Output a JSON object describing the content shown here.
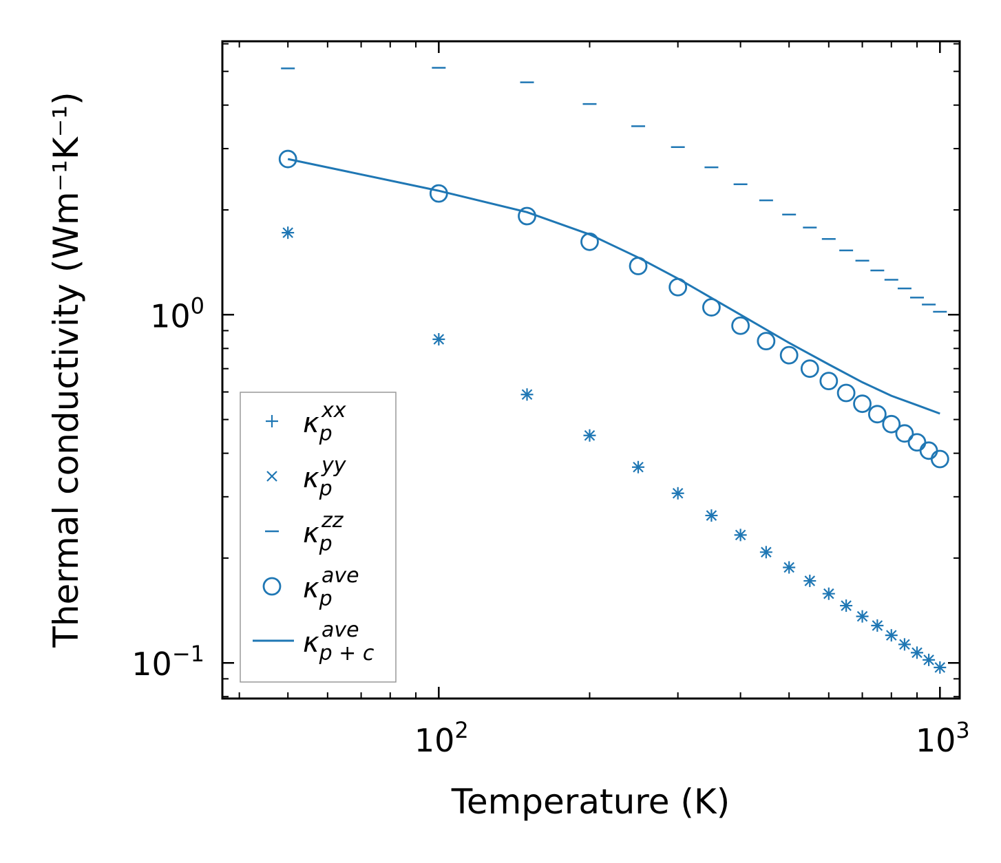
{
  "chart_data": {
    "type": "scatter",
    "xscale": "log",
    "yscale": "log",
    "xlabel": "Temperature (K)",
    "ylabel": "Thermal conductivity (Wm⁻¹K⁻¹)",
    "xlim": [
      37,
      1095
    ],
    "ylim": [
      0.079,
      6.1
    ],
    "x_ticks": [
      {
        "value": 100,
        "base": "10",
        "exp": "2"
      },
      {
        "value": 1000,
        "base": "10",
        "exp": "3"
      }
    ],
    "y_ticks": [
      {
        "value": 0.1,
        "base": "10",
        "exp": "−1"
      },
      {
        "value": 1,
        "base": "10",
        "exp": "0"
      }
    ],
    "x": [
      50,
      100,
      150,
      200,
      250,
      300,
      350,
      400,
      450,
      500,
      550,
      600,
      650,
      700,
      750,
      800,
      850,
      900,
      950,
      1000
    ],
    "series": [
      {
        "name": "kappa_p_xx",
        "marker": "plus",
        "values": [
          1.72,
          0.85,
          0.59,
          0.45,
          0.365,
          0.307,
          0.265,
          0.233,
          0.208,
          0.188,
          0.172,
          0.158,
          0.146,
          0.136,
          0.128,
          0.12,
          0.113,
          0.107,
          0.102,
          0.097
        ]
      },
      {
        "name": "kappa_p_yy",
        "marker": "x",
        "values": [
          1.72,
          0.85,
          0.59,
          0.45,
          0.365,
          0.307,
          0.265,
          0.233,
          0.208,
          0.188,
          0.172,
          0.158,
          0.146,
          0.136,
          0.128,
          0.12,
          0.113,
          0.107,
          0.102,
          0.097
        ]
      },
      {
        "name": "kappa_p_zz",
        "marker": "hline",
        "values": [
          5.1,
          5.12,
          4.65,
          4.03,
          3.48,
          3.03,
          2.65,
          2.37,
          2.13,
          1.94,
          1.78,
          1.65,
          1.53,
          1.43,
          1.34,
          1.26,
          1.19,
          1.12,
          1.07,
          1.02
        ]
      },
      {
        "name": "kappa_p_ave",
        "marker": "circle",
        "values": [
          2.8,
          2.23,
          1.92,
          1.62,
          1.38,
          1.2,
          1.05,
          0.93,
          0.84,
          0.765,
          0.7,
          0.645,
          0.596,
          0.555,
          0.518,
          0.485,
          0.456,
          0.43,
          0.407,
          0.385
        ]
      },
      {
        "name": "kappa_pc_ave",
        "marker": "line",
        "x": [
          50,
          100,
          150,
          200,
          250,
          300,
          400,
          500,
          600,
          700,
          800,
          900,
          1000
        ],
        "values": [
          2.8,
          2.27,
          1.97,
          1.7,
          1.46,
          1.27,
          1.0,
          0.83,
          0.72,
          0.64,
          0.585,
          0.55,
          0.52
        ]
      }
    ],
    "legend": {
      "position": "lower-left",
      "entries": [
        {
          "series": "kappa_p_xx",
          "marker": "plus",
          "base": "κ",
          "sub": "p",
          "sup": "xx"
        },
        {
          "series": "kappa_p_yy",
          "marker": "x",
          "base": "κ",
          "sub": "p",
          "sup": "yy"
        },
        {
          "series": "kappa_p_zz",
          "marker": "hline",
          "base": "κ",
          "sub": "p",
          "sup": "zz"
        },
        {
          "series": "kappa_p_ave",
          "marker": "circle",
          "base": "κ",
          "sub": "p",
          "sup": "ave"
        },
        {
          "series": "kappa_pc_ave",
          "marker": "line",
          "base": "κ",
          "sub": "p + c",
          "sup": "ave"
        }
      ]
    },
    "colors": {
      "series": "#1f77b4",
      "axes": "#000000",
      "legend_border": "#999999"
    }
  }
}
